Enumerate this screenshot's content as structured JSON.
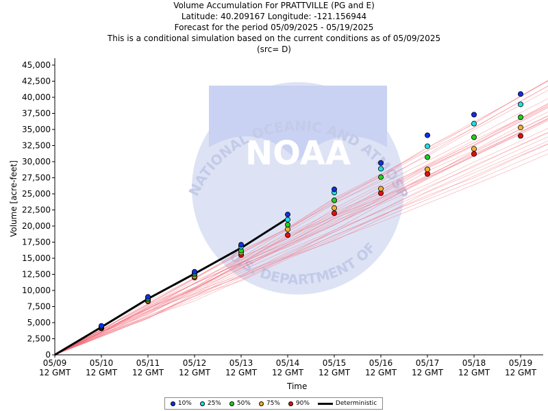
{
  "chart_data": {
    "type": "line",
    "title_lines": [
      "Volume Accumulation For PRATTVILLE (PG and E)",
      "Latitude: 40.209167 Longitude: -121.156944",
      "Forecast for the period 05/09/2025 - 05/19/2025",
      "This is a conditional simulation based on the current conditions as of 05/09/2025",
      "(src= D)"
    ],
    "xlabel": "Time",
    "ylabel": "Volume [acre-feet]",
    "x_ticks": [
      "05/09\n12 GMT",
      "05/10\n12 GMT",
      "05/11\n12 GMT",
      "05/12\n12 GMT",
      "05/13\n12 GMT",
      "05/14\n12 GMT",
      "05/15\n12 GMT",
      "05/16\n12 GMT",
      "05/17\n12 GMT",
      "05/18\n12 GMT",
      "05/19\n12 GMT"
    ],
    "x_tick_dates": [
      "05/09",
      "05/10",
      "05/11",
      "05/12",
      "05/13",
      "05/14",
      "05/15",
      "05/16",
      "05/17",
      "05/18",
      "05/19"
    ],
    "x_tick_time": "12 GMT",
    "y_ticks": [
      "0",
      "2,500",
      "5,000",
      "7,500",
      "10,000",
      "12,500",
      "15,000",
      "17,500",
      "20,000",
      "22,500",
      "25,000",
      "27,500",
      "30,000",
      "32,500",
      "35,000",
      "37,500",
      "40,000",
      "42,500",
      "45,000"
    ],
    "ylim": [
      0,
      45000
    ],
    "ylim_top": 45000,
    "grid": false,
    "legend_position": "bottom-center",
    "background_watermark": "NOAA / National Oceanic and Atmospheric Administration / U.S. Department of Commerce",
    "watermark_text": {
      "logo": "NOAA",
      "arc_top": "NATIONAL OCEANIC AND ATMOSPHERIC ADMINISTRATION",
      "arc_bottom": "U.S. DEPARTMENT OF COMMERCE"
    },
    "series": [
      {
        "name": "10%",
        "color": "#1030e0",
        "values": [
          0,
          4500,
          9000,
          12900,
          17100,
          21800,
          25700,
          29800,
          34100,
          37300,
          40500
        ]
      },
      {
        "name": "25%",
        "color": "#20e0e0",
        "values": [
          0,
          4400,
          8800,
          12700,
          16800,
          21000,
          25200,
          28900,
          32400,
          35900,
          38900
        ]
      },
      {
        "name": "50%",
        "color": "#20d020",
        "values": [
          0,
          4300,
          8600,
          12500,
          16200,
          20200,
          24000,
          27600,
          30700,
          33800,
          36900
        ]
      },
      {
        "name": "75%",
        "color": "#f0b030",
        "values": [
          0,
          4200,
          8400,
          12200,
          15900,
          19500,
          22800,
          25800,
          28800,
          32000,
          35300
        ]
      },
      {
        "name": "90%",
        "color": "#e01010",
        "values": [
          0,
          4100,
          8300,
          12000,
          15500,
          18600,
          22000,
          25100,
          28100,
          31200,
          34000
        ]
      },
      {
        "name": "Deterministic",
        "color": "#000000",
        "x_index": [
          0,
          1,
          2,
          3,
          4,
          5
        ],
        "values": [
          0,
          4300,
          8700,
          12600,
          16600,
          21200
        ]
      }
    ],
    "ensemble_traces": {
      "color": "#f06070",
      "count": 30,
      "spread_low_end": 32500,
      "spread_high_end": 44800
    }
  },
  "legend": {
    "entries": [
      {
        "label": "10%",
        "color": "#1030e0",
        "kind": "dot"
      },
      {
        "label": "25%",
        "color": "#20e0e0",
        "kind": "dot"
      },
      {
        "label": "50%",
        "color": "#20d020",
        "kind": "dot"
      },
      {
        "label": "75%",
        "color": "#f0b030",
        "kind": "dot"
      },
      {
        "label": "90%",
        "color": "#e01010",
        "kind": "dot"
      },
      {
        "label": "Deterministic",
        "color": "#000000",
        "kind": "line"
      }
    ]
  }
}
